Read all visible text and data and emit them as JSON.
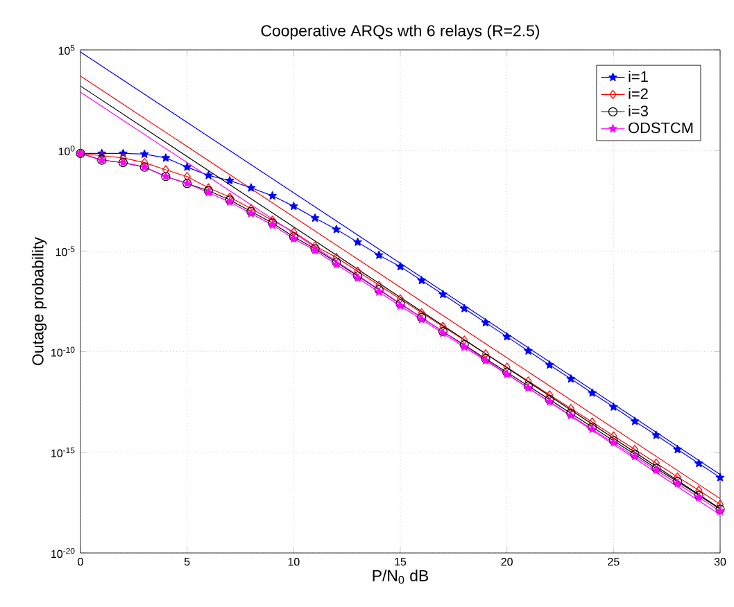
{
  "chart_data": {
    "type": "line",
    "title": "Cooperative ARQs wth 6 relays (R=2.5)",
    "xlabel": "P/N$_{0}$ dB",
    "ylabel": "Outage probability",
    "x": [
      0,
      1,
      2,
      3,
      4,
      5,
      6,
      7,
      8,
      9,
      10,
      11,
      12,
      13,
      14,
      15,
      16,
      17,
      18,
      19,
      20,
      21,
      22,
      23,
      24,
      25,
      26,
      27,
      28,
      29,
      30
    ],
    "series": [
      {
        "name": "i=1",
        "color": "#0000ff",
        "marker": "star",
        "values": [
          0.72,
          0.72,
          0.72,
          0.66,
          0.43,
          0.15,
          0.058,
          0.032,
          0.014,
          0.0056,
          0.0017,
          0.00044,
          0.00012,
          2.8e-05,
          6.3e-06,
          1.7e-06,
          3.5e-07,
          7.1e-08,
          1.4e-08,
          2.8e-09,
          5.6e-10,
          1.1e-10,
          2.2e-11,
          4.5e-12,
          8.9e-13,
          1.8e-13,
          3.5e-14,
          7.1e-15,
          1.4e-15,
          2.8e-16,
          5.6e-17
        ]
      },
      {
        "name": "i=2",
        "color": "#ff0000",
        "marker": "diamond",
        "values": [
          0.72,
          0.55,
          0.43,
          0.25,
          0.11,
          0.051,
          0.014,
          0.0048,
          0.0013,
          0.00034,
          8.9e-05,
          1.8e-05,
          4.9e-06,
          1e-06,
          2e-07,
          4.2e-08,
          8.7e-09,
          1.8e-09,
          3.8e-10,
          7.9e-11,
          1.7e-11,
          3.5e-12,
          7.2e-13,
          1.5e-13,
          3.2e-14,
          6.6e-15,
          1.4e-15,
          2.9e-16,
          6e-17,
          1.3e-17,
          2.6e-18
        ]
      },
      {
        "name": "i=3",
        "color": "#000000",
        "marker": "circle",
        "values": [
          0.72,
          0.33,
          0.25,
          0.15,
          0.051,
          0.023,
          0.01,
          0.0035,
          0.00093,
          0.00025,
          5.1e-05,
          1.3e-05,
          2.8e-06,
          5.8e-07,
          1.2e-07,
          2.4e-08,
          5e-09,
          1e-09,
          2.2e-10,
          4.5e-11,
          9.6e-12,
          2e-12,
          4.2e-13,
          8.7e-14,
          1.8e-14,
          3.8e-15,
          7.9e-16,
          1.6e-16,
          3.5e-17,
          7.3e-18,
          1.5e-18
        ]
      },
      {
        "name": "ODSTCM",
        "color": "#ff00ff",
        "marker": "star",
        "values": [
          0.72,
          0.33,
          0.25,
          0.15,
          0.051,
          0.023,
          0.0081,
          0.0028,
          0.00074,
          0.0002,
          4.1e-05,
          1.1e-05,
          2.2e-06,
          4.6e-07,
          9.3e-08,
          1.9e-08,
          4e-09,
          8.3e-10,
          1.7e-10,
          3.6e-11,
          7.6e-12,
          1.6e-12,
          3.3e-13,
          6.9e-14,
          1.4e-14,
          3e-15,
          6.3e-16,
          1.3e-16,
          2.8e-17,
          5.8e-18,
          1.2e-18
        ]
      },
      {
        "color": "#0000ff",
        "marker": "none",
        "x": [
          0,
          10,
          20,
          30
        ],
        "values": [
          79000.0,
          0.0079,
          7.9e-10,
          7.9e-17
        ]
      },
      {
        "color": "#ff0000",
        "marker": "none",
        "x": [
          0,
          10,
          20,
          30
        ],
        "values": [
          5000.0,
          0.0005,
          5e-11,
          5e-18
        ]
      },
      {
        "color": "#000000",
        "marker": "none",
        "x": [
          0,
          10,
          20,
          30
        ],
        "values": [
          1600.0,
          0.00016,
          1.6e-11,
          1.6e-18
        ]
      },
      {
        "color": "#ff00ff",
        "marker": "none",
        "x": [
          0,
          10,
          20,
          30
        ],
        "values": [
          790.0,
          7.9e-05,
          7.9e-12,
          7.9e-19
        ]
      }
    ],
    "log": "y",
    "xlim": [
      0,
      30
    ],
    "ylim": [
      1e-20,
      100000.0
    ],
    "xticks": [
      0,
      5,
      10,
      15,
      20,
      25,
      30
    ],
    "yticks": [
      {
        "value": 1e-20,
        "label": "10$^{-20}$"
      },
      {
        "value": 1e-15,
        "label": "10$^{-15}$"
      },
      {
        "value": 1e-10,
        "label": "10$^{-10}$"
      },
      {
        "value": 1e-05,
        "label": "10$^{-5}$"
      },
      {
        "value": 1,
        "label": "10$^{0}$"
      },
      {
        "value": 100000.0,
        "label": "10$^{5}$"
      }
    ],
    "grid": true,
    "legend": "top right"
  }
}
